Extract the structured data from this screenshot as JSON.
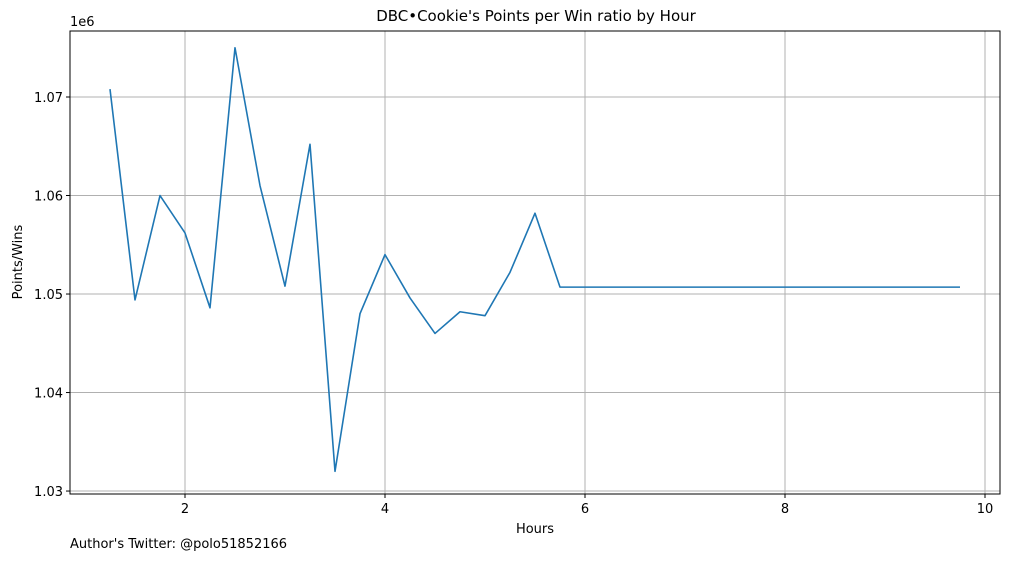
{
  "chart_data": {
    "type": "line",
    "title": "DBC•Cookie's Points per Win ratio by Hour",
    "xlabel": "Hours",
    "ylabel": "Points/Wins",
    "offset_label": "1e6",
    "xlim": [
      0.85,
      10.15
    ],
    "ylim": [
      1.0297,
      1.0767
    ],
    "x_ticks": [
      2,
      4,
      6,
      8,
      10
    ],
    "x_tick_labels": [
      "2",
      "4",
      "6",
      "8",
      "10"
    ],
    "y_ticks": [
      1.03,
      1.04,
      1.05,
      1.06,
      1.07
    ],
    "y_tick_labels": [
      "1.03",
      "1.04",
      "1.05",
      "1.06",
      "1.07"
    ],
    "grid": true,
    "series": [
      {
        "color": "#1f77b4",
        "x": [
          1.25,
          1.5,
          1.75,
          2.0,
          2.25,
          2.5,
          2.75,
          3.0,
          3.25,
          3.5,
          3.75,
          4.0,
          4.25,
          4.5,
          4.75,
          5.0,
          5.25,
          5.5,
          5.75,
          6.0,
          6.25,
          6.5,
          6.75,
          7.0,
          7.25,
          7.5,
          7.75,
          8.0,
          8.25,
          8.5,
          8.75,
          9.0,
          9.25,
          9.5,
          9.75
        ],
        "y": [
          1.0708,
          1.0494,
          1.06,
          1.0562,
          1.0486,
          1.075,
          1.061,
          1.0508,
          1.0652,
          1.032,
          1.048,
          1.054,
          1.0496,
          1.046,
          1.0482,
          1.0478,
          1.0522,
          1.0582,
          1.0507,
          1.0507,
          1.0507,
          1.0507,
          1.0507,
          1.0507,
          1.0507,
          1.0507,
          1.0507,
          1.0507,
          1.0507,
          1.0507,
          1.0507,
          1.0507,
          1.0507,
          1.0507,
          1.0507
        ]
      }
    ]
  },
  "footer": {
    "text": "Author's Twitter: @polo51852166"
  }
}
